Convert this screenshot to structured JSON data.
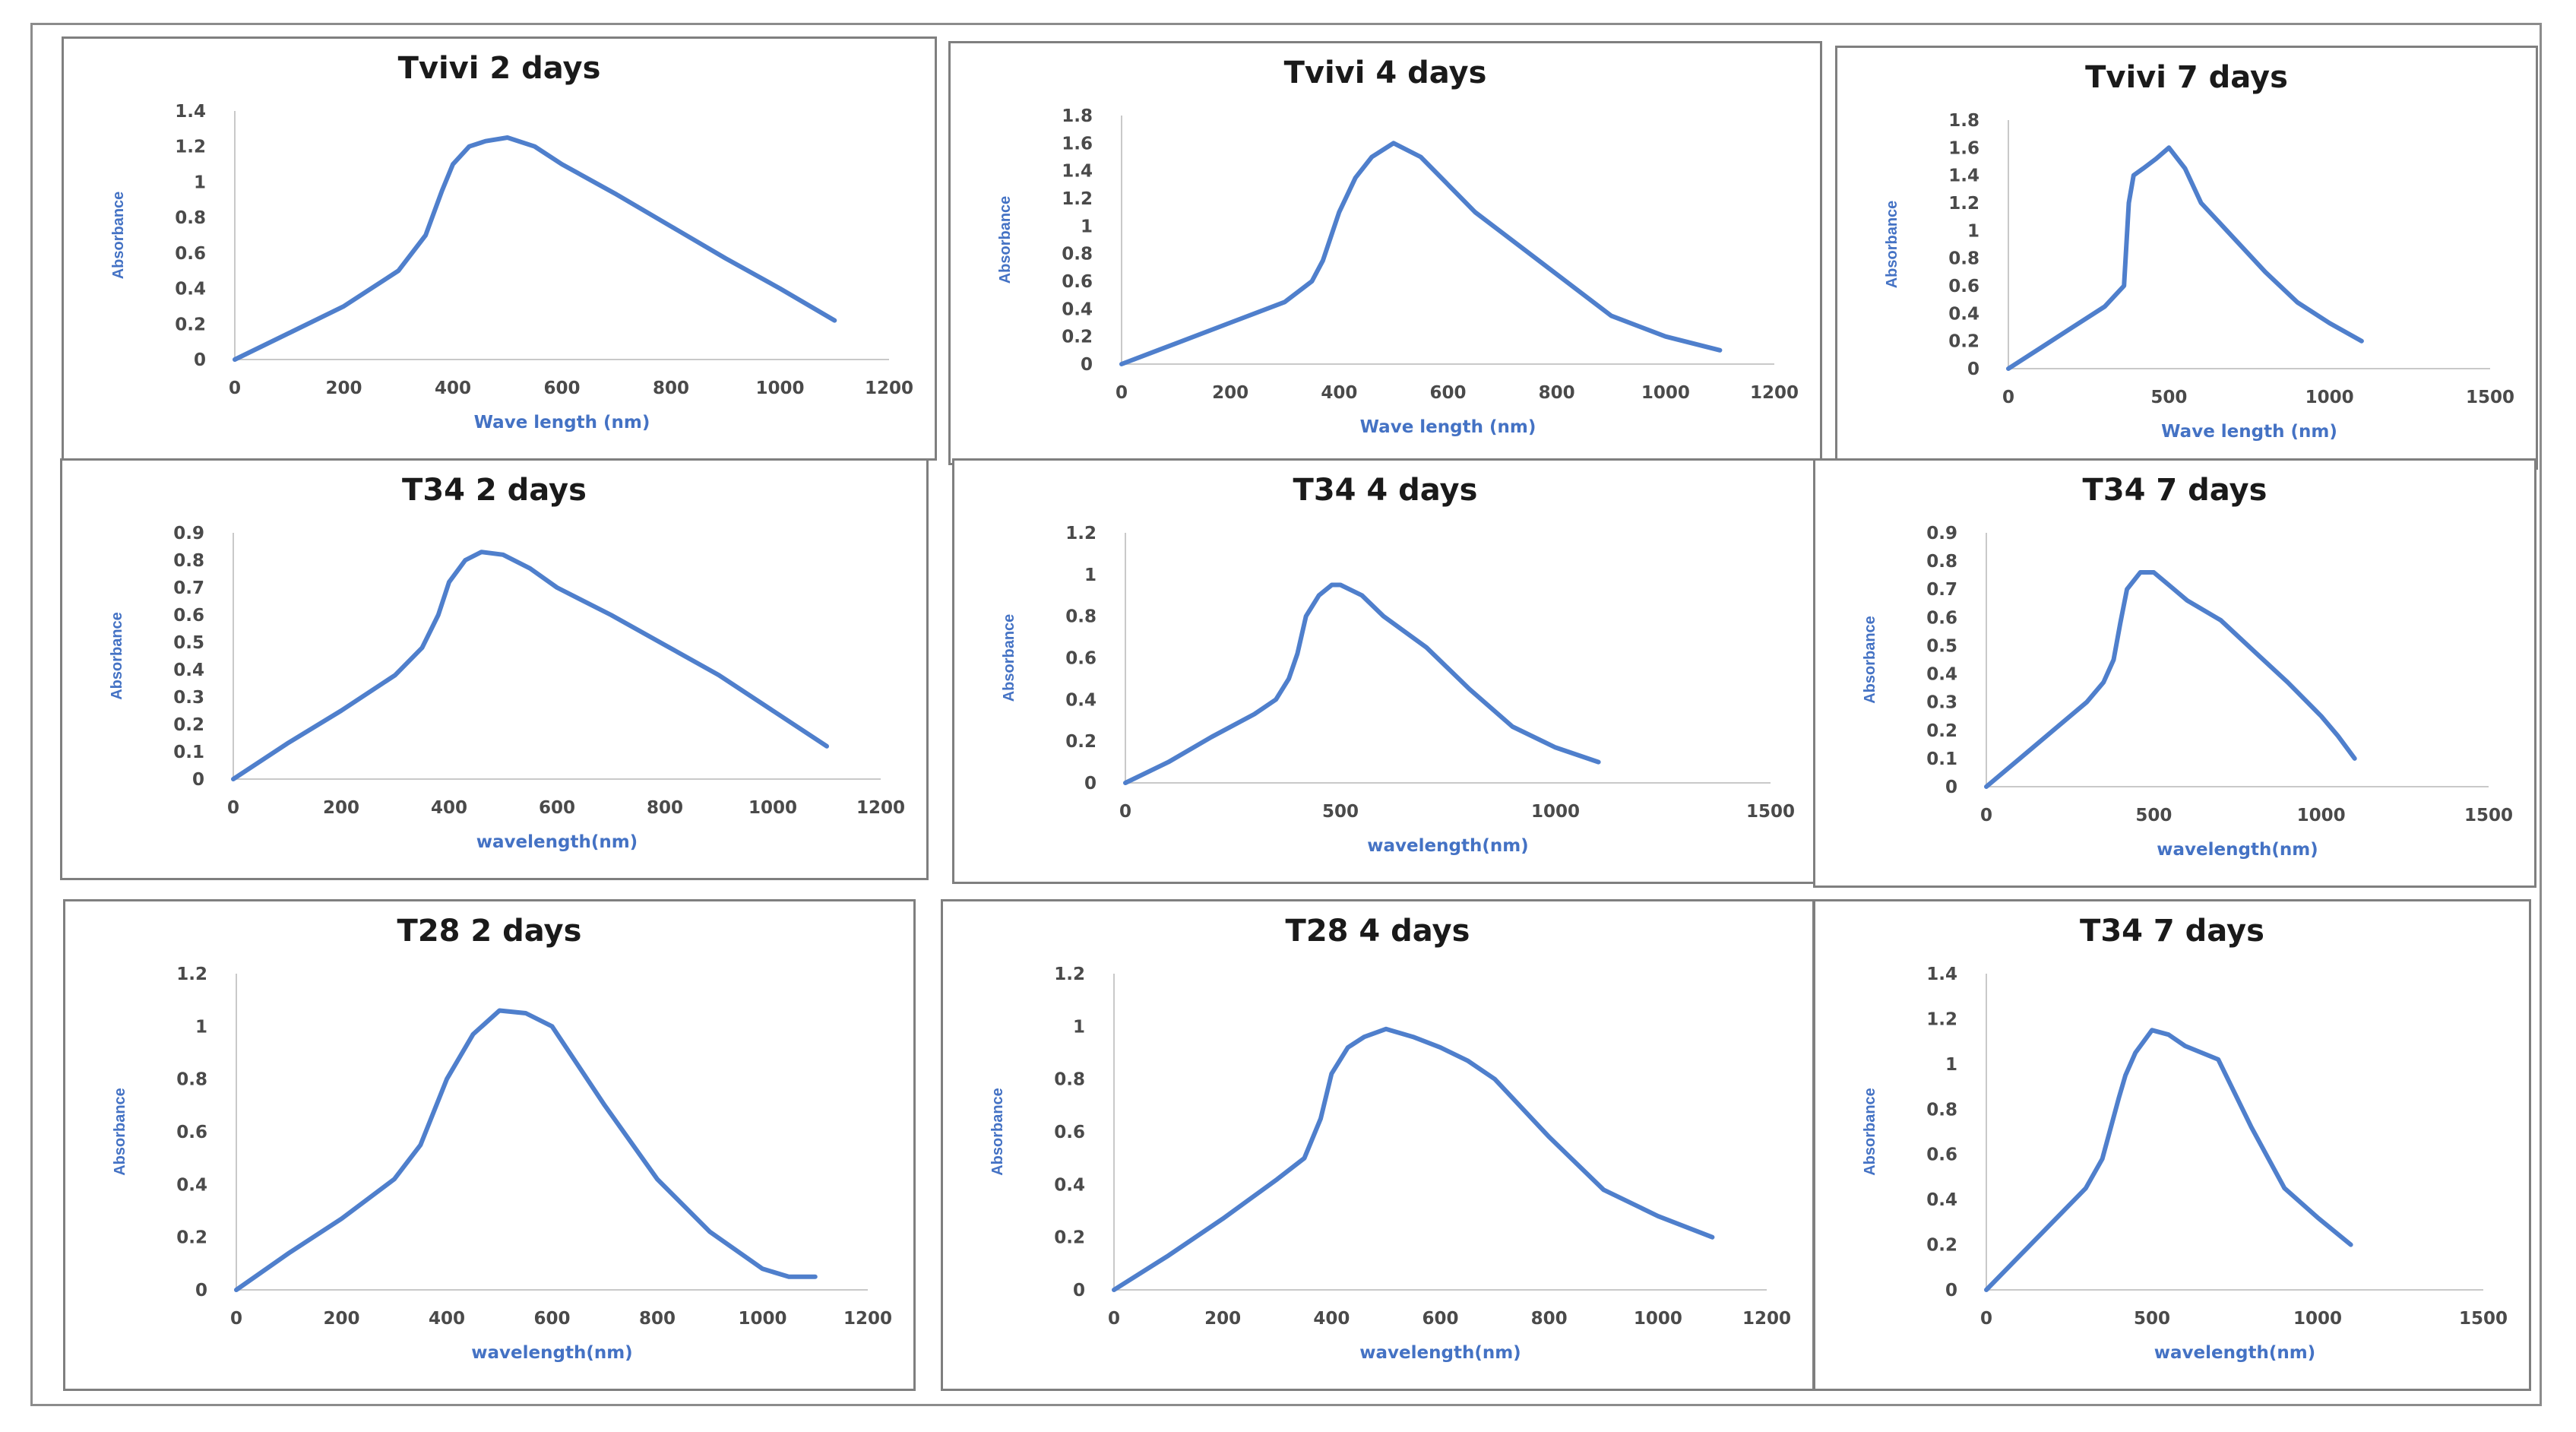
{
  "chart_data": [
    {
      "type": "line",
      "title": "Tvivi 2 days",
      "xlabel": "Wave length (nm)",
      "ylabel": "Absorbance",
      "xticks": [
        "0",
        "200",
        "400",
        "600",
        "800",
        "1000",
        "1200"
      ],
      "xlim": [
        0,
        1200
      ],
      "yticks": [
        "0",
        "0.2",
        "0.4",
        "0.6",
        "0.8",
        "1",
        "1.2",
        "1.4"
      ],
      "ylim": [
        0,
        1.4
      ],
      "series": [
        {
          "name": "Absorbance",
          "x": [
            0,
            100,
            200,
            300,
            350,
            380,
            400,
            430,
            460,
            500,
            550,
            600,
            700,
            800,
            900,
            1000,
            1100
          ],
          "y": [
            0,
            0.15,
            0.3,
            0.5,
            0.7,
            0.95,
            1.1,
            1.2,
            1.23,
            1.25,
            1.2,
            1.1,
            0.93,
            0.75,
            0.57,
            0.4,
            0.22
          ]
        }
      ]
    },
    {
      "type": "line",
      "title": "Tvivi 4 days",
      "xlabel": "Wave length (nm)",
      "ylabel": "Absorbance",
      "xticks": [
        "0",
        "200",
        "400",
        "600",
        "800",
        "1000",
        "1200"
      ],
      "xlim": [
        0,
        1200
      ],
      "yticks": [
        "0",
        "0.2",
        "0.4",
        "0.6",
        "0.8",
        "1",
        "1.2",
        "1.4",
        "1.6",
        "1.8"
      ],
      "ylim": [
        0,
        1.8
      ],
      "series": [
        {
          "name": "Absorbance",
          "x": [
            0,
            100,
            200,
            300,
            350,
            370,
            400,
            430,
            460,
            500,
            550,
            600,
            650,
            700,
            800,
            900,
            1000,
            1100
          ],
          "y": [
            0,
            0.15,
            0.3,
            0.45,
            0.6,
            0.75,
            1.1,
            1.35,
            1.5,
            1.6,
            1.5,
            1.3,
            1.1,
            0.95,
            0.65,
            0.35,
            0.2,
            0.1
          ]
        }
      ]
    },
    {
      "type": "line",
      "title": "Tvivi 7 days",
      "xlabel": "Wave length (nm)",
      "ylabel": "Absorbance",
      "xticks": [
        "0",
        "500",
        "1000",
        "1500"
      ],
      "xlim": [
        0,
        1500
      ],
      "yticks": [
        "0",
        "0.2",
        "0.4",
        "0.6",
        "0.8",
        "1",
        "1.2",
        "1.4",
        "1.6",
        "1.8"
      ],
      "ylim": [
        0,
        1.8
      ],
      "series": [
        {
          "name": "Absorbance",
          "x": [
            0,
            100,
            200,
            300,
            360,
            375,
            390,
            420,
            460,
            500,
            550,
            600,
            700,
            800,
            900,
            1000,
            1100
          ],
          "y": [
            0,
            0.15,
            0.3,
            0.45,
            0.6,
            1.2,
            1.4,
            1.45,
            1.52,
            1.6,
            1.45,
            1.2,
            0.95,
            0.7,
            0.48,
            0.33,
            0.2
          ]
        }
      ]
    },
    {
      "type": "line",
      "title": "T34 2 days",
      "xlabel": "wavelength(nm)",
      "ylabel": "Absorbance",
      "xticks": [
        "0",
        "200",
        "400",
        "600",
        "800",
        "1000",
        "1200"
      ],
      "xlim": [
        0,
        1200
      ],
      "yticks": [
        "0",
        "0.1",
        "0.2",
        "0.3",
        "0.4",
        "0.5",
        "0.6",
        "0.7",
        "0.8",
        "0.9"
      ],
      "ylim": [
        0,
        0.9
      ],
      "series": [
        {
          "name": "Absorbance",
          "x": [
            0,
            100,
            200,
            300,
            350,
            380,
            400,
            430,
            460,
            500,
            550,
            600,
            700,
            800,
            900,
            1000,
            1100
          ],
          "y": [
            0,
            0.13,
            0.25,
            0.38,
            0.48,
            0.6,
            0.72,
            0.8,
            0.83,
            0.82,
            0.77,
            0.7,
            0.6,
            0.49,
            0.38,
            0.25,
            0.12
          ]
        }
      ]
    },
    {
      "type": "line",
      "title": "T34 4 days",
      "xlabel": "wavelength(nm)",
      "ylabel": "Absorbance",
      "xticks": [
        "0",
        "500",
        "1000",
        "1500"
      ],
      "xlim": [
        0,
        1500
      ],
      "yticks": [
        "0",
        "0.2",
        "0.4",
        "0.6",
        "0.8",
        "1",
        "1.2"
      ],
      "ylim": [
        0,
        1.2
      ],
      "series": [
        {
          "name": "Absorbance",
          "x": [
            0,
            100,
            200,
            300,
            350,
            380,
            400,
            420,
            450,
            480,
            500,
            550,
            600,
            700,
            800,
            900,
            1000,
            1100
          ],
          "y": [
            0,
            0.1,
            0.22,
            0.33,
            0.4,
            0.5,
            0.62,
            0.8,
            0.9,
            0.95,
            0.95,
            0.9,
            0.8,
            0.65,
            0.45,
            0.27,
            0.17,
            0.1
          ]
        }
      ]
    },
    {
      "type": "line",
      "title": "T34 7 days",
      "xlabel": "wavelength(nm)",
      "ylabel": "Absorbance",
      "xticks": [
        "0",
        "500",
        "1000",
        "1500"
      ],
      "xlim": [
        0,
        1500
      ],
      "yticks": [
        "0",
        "0.1",
        "0.2",
        "0.3",
        "0.4",
        "0.5",
        "0.6",
        "0.7",
        "0.8",
        "0.9"
      ],
      "ylim": [
        0,
        0.9
      ],
      "series": [
        {
          "name": "Absorbance",
          "x": [
            0,
            100,
            200,
            300,
            350,
            380,
            400,
            420,
            460,
            500,
            550,
            600,
            700,
            800,
            900,
            1000,
            1050,
            1100
          ],
          "y": [
            0,
            0.1,
            0.2,
            0.3,
            0.37,
            0.45,
            0.58,
            0.7,
            0.76,
            0.76,
            0.71,
            0.66,
            0.59,
            0.48,
            0.37,
            0.25,
            0.18,
            0.1
          ]
        }
      ]
    },
    {
      "type": "line",
      "title": "T28 2 days",
      "xlabel": "wavelength(nm)",
      "ylabel": "Absorbance",
      "xticks": [
        "0",
        "200",
        "400",
        "600",
        "800",
        "1000",
        "1200"
      ],
      "xlim": [
        0,
        1200
      ],
      "yticks": [
        "0",
        "0.2",
        "0.4",
        "0.6",
        "0.8",
        "1",
        "1.2"
      ],
      "ylim": [
        0,
        1.2
      ],
      "series": [
        {
          "name": "Absorbance",
          "x": [
            0,
            100,
            200,
            300,
            350,
            400,
            450,
            500,
            550,
            600,
            700,
            800,
            900,
            1000,
            1050,
            1100
          ],
          "y": [
            0,
            0.14,
            0.27,
            0.42,
            0.55,
            0.8,
            0.97,
            1.06,
            1.05,
            1.0,
            0.7,
            0.42,
            0.22,
            0.08,
            0.05,
            0.05
          ]
        }
      ]
    },
    {
      "type": "line",
      "title": "T28 4 days",
      "xlabel": "wavelength(nm)",
      "ylabel": "Absorbance",
      "xticks": [
        "0",
        "200",
        "400",
        "600",
        "800",
        "1000",
        "1200"
      ],
      "xlim": [
        0,
        1200
      ],
      "yticks": [
        "0",
        "0.2",
        "0.4",
        "0.6",
        "0.8",
        "1",
        "1.2"
      ],
      "ylim": [
        0,
        1.2
      ],
      "series": [
        {
          "name": "Absorbance",
          "x": [
            0,
            100,
            200,
            300,
            350,
            380,
            400,
            430,
            460,
            500,
            550,
            600,
            650,
            700,
            800,
            900,
            1000,
            1100
          ],
          "y": [
            0,
            0.13,
            0.27,
            0.42,
            0.5,
            0.65,
            0.82,
            0.92,
            0.96,
            0.99,
            0.96,
            0.92,
            0.87,
            0.8,
            0.58,
            0.38,
            0.28,
            0.2
          ]
        }
      ]
    },
    {
      "type": "line",
      "title": "T34 7 days",
      "xlabel": "wavelength(nm)",
      "ylabel": "Absorbance",
      "xticks": [
        "0",
        "500",
        "1000",
        "1500"
      ],
      "xlim": [
        0,
        1500
      ],
      "yticks": [
        "0",
        "0.2",
        "0.4",
        "0.6",
        "0.8",
        "1",
        "1.2",
        "1.4"
      ],
      "ylim": [
        0,
        1.4
      ],
      "series": [
        {
          "name": "Absorbance",
          "x": [
            0,
            100,
            200,
            300,
            350,
            400,
            420,
            450,
            500,
            550,
            600,
            650,
            700,
            800,
            900,
            1000,
            1100
          ],
          "y": [
            0,
            0.15,
            0.3,
            0.45,
            0.58,
            0.85,
            0.95,
            1.05,
            1.15,
            1.13,
            1.08,
            1.05,
            1.02,
            0.72,
            0.45,
            0.32,
            0.2
          ]
        }
      ]
    }
  ]
}
